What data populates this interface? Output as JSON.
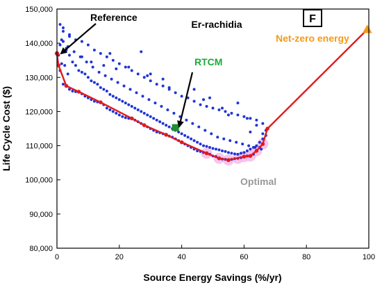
{
  "chart_data": {
    "type": "scatter",
    "title": "Er-rachidia",
    "panel_label": "F",
    "xlabel": "Source Energy Savings (%/yr)",
    "ylabel": "Life Cycle Cost ($)",
    "xlim": [
      0,
      100
    ],
    "ylim": [
      80000,
      150000
    ],
    "x_ticks": [
      0,
      20,
      40,
      60,
      80,
      100
    ],
    "x_tick_labels": [
      "0",
      "20",
      "40",
      "60",
      "80",
      "100"
    ],
    "y_ticks": [
      80000,
      90000,
      100000,
      110000,
      120000,
      130000,
      140000,
      150000
    ],
    "y_tick_labels": [
      "80,000",
      "90,000",
      "100,000",
      "110,000",
      "120,000",
      "130,000",
      "140,000",
      "150,000"
    ],
    "grid": false,
    "colors": {
      "points": "#1f35d6",
      "pareto": "#e31a1c",
      "optimal_highlight": "#f4b8e8",
      "rtcm": "#1f8f2f",
      "rtcm_label": "#1aaa3a",
      "net_zero": "#f39a1a",
      "optimal_label": "#999999",
      "annotation_arrow": "#000000"
    },
    "annotations": {
      "reference": "Reference",
      "rtcm": "RTCM",
      "net_zero": "Net-zero energy",
      "optimal": "Optimal"
    },
    "special_points": {
      "reference": {
        "x": 0,
        "y": 137000
      },
      "rtcm": {
        "x": 38,
        "y": 115300
      },
      "net_zero": {
        "x": 99.5,
        "y": 144000
      },
      "optimal": {
        "x": 55,
        "y": 105800
      }
    },
    "pareto_front": {
      "x": [
        0,
        0.5,
        3,
        7,
        14,
        24,
        28,
        35,
        40,
        48,
        52,
        55,
        60,
        62,
        64,
        66,
        67.5,
        99.5
      ],
      "y": [
        137000,
        133500,
        127500,
        125800,
        122700,
        118000,
        116000,
        113200,
        111000,
        107800,
        106300,
        105800,
        106800,
        107000,
        108500,
        110500,
        115000,
        144000
      ]
    },
    "optimal_region": {
      "x": [
        48,
        52,
        55,
        58,
        60,
        62,
        64,
        66
      ],
      "y": [
        107800,
        106300,
        105800,
        106300,
        106800,
        107000,
        108500,
        110500
      ]
    },
    "series": [
      {
        "name": "",
        "x": [
          0.5,
          1,
          1,
          1.5,
          2,
          2,
          2.5,
          3,
          3,
          3.5,
          4,
          4,
          5,
          5,
          6,
          6,
          7,
          7,
          8,
          8,
          9,
          9,
          10,
          10,
          11,
          11,
          12,
          12,
          13,
          13,
          14,
          14,
          15,
          15,
          16,
          16,
          17,
          17,
          18,
          18,
          19,
          19,
          20,
          20,
          21,
          21,
          22,
          22,
          23,
          23,
          24,
          24,
          25,
          25,
          26,
          26,
          27,
          27,
          28,
          28,
          29,
          29,
          30,
          30,
          31,
          31,
          32,
          32,
          33,
          33,
          34,
          34,
          35,
          35,
          36,
          36,
          37,
          37,
          38,
          38,
          39,
          39,
          40,
          40,
          41,
          41,
          42,
          42,
          43,
          43,
          44,
          44,
          45,
          45,
          46,
          46,
          47,
          47,
          48,
          48,
          49,
          49,
          50,
          50,
          51,
          51,
          52,
          52,
          53,
          53,
          54,
          54,
          55,
          55,
          56,
          56,
          57,
          57,
          58,
          58,
          59,
          59,
          60,
          60,
          61,
          61,
          62,
          62,
          63,
          63,
          64,
          64,
          65,
          65,
          66,
          66,
          67,
          67,
          2,
          4,
          6,
          8,
          10,
          12,
          14,
          16,
          18,
          20,
          22,
          24,
          26,
          28,
          30,
          32,
          34,
          36,
          38,
          40,
          42,
          44,
          46,
          48,
          50,
          52,
          54,
          56,
          58,
          60,
          62,
          64,
          66,
          1.5,
          3.5,
          5.5,
          7.5,
          9.5,
          11.5,
          13.5,
          15.5,
          17.5,
          19.5,
          21.5,
          23.5,
          25.5,
          27.5,
          29.5,
          31.5,
          33.5,
          35.5,
          37.5,
          39.5,
          41.5,
          43.5,
          45.5,
          47.5,
          49.5,
          51.5,
          53.5,
          55.5,
          57.5,
          59.5,
          61.5,
          63.5,
          65.5,
          1,
          2,
          3,
          4,
          8,
          11,
          15,
          19,
          27,
          30,
          34,
          44,
          49,
          53,
          58,
          61,
          64,
          66,
          17,
          23,
          29,
          36,
          47,
          55,
          62
        ],
        "y": [
          136500,
          132000,
          139500,
          134000,
          128000,
          140500,
          133500,
          127500,
          138000,
          131000,
          126500,
          136500,
          126000,
          134500,
          125800,
          133500,
          125800,
          132000,
          125200,
          131500,
          124500,
          131000,
          124000,
          130000,
          123500,
          129000,
          123000,
          128500,
          122800,
          128000,
          122700,
          127000,
          122000,
          126500,
          121000,
          126000,
          120500,
          125000,
          120000,
          124500,
          119500,
          124000,
          119000,
          123500,
          118500,
          123000,
          118200,
          122500,
          118000,
          122000,
          118000,
          121500,
          117500,
          121000,
          117000,
          120500,
          116500,
          120000,
          116000,
          119500,
          115500,
          119000,
          115000,
          118500,
          114500,
          118000,
          114000,
          117500,
          113800,
          117000,
          113500,
          116500,
          113200,
          116000,
          112800,
          115500,
          112500,
          115000,
          112000,
          114500,
          111500,
          114000,
          111000,
          113500,
          110500,
          113000,
          110000,
          112500,
          109500,
          112000,
          109000,
          111500,
          108500,
          111000,
          108300,
          110500,
          108000,
          110000,
          107800,
          109800,
          107500,
          109500,
          107000,
          109200,
          106800,
          109000,
          106300,
          108800,
          106100,
          108500,
          106000,
          108300,
          105800,
          108000,
          106000,
          107800,
          106200,
          107600,
          106300,
          107500,
          106500,
          107800,
          106800,
          108000,
          107000,
          108500,
          107000,
          109000,
          107500,
          109500,
          108500,
          110000,
          109500,
          111000,
          110500,
          112000,
          113000,
          114500,
          143500,
          142000,
          141000,
          140500,
          139500,
          138000,
          137000,
          136000,
          135000,
          134000,
          133000,
          132000,
          131000,
          130000,
          129000,
          128000,
          127500,
          126500,
          125500,
          124500,
          124000,
          123000,
          122000,
          121500,
          121000,
          120500,
          120000,
          119500,
          119000,
          118500,
          118000,
          117500,
          116500,
          141000,
          139000,
          137500,
          136000,
          134500,
          133000,
          131500,
          130500,
          129500,
          128500,
          127500,
          126500,
          125500,
          124500,
          123500,
          122500,
          121500,
          120500,
          119500,
          118500,
          117500,
          116500,
          115500,
          114500,
          113500,
          112500,
          112000,
          111500,
          111000,
          110500,
          110000,
          109500,
          109000,
          145500,
          144500,
          138500,
          142500,
          136000,
          134500,
          133500,
          132500,
          137500,
          131000,
          129500,
          126500,
          124000,
          121000,
          122500,
          118000,
          116000,
          113500,
          137000,
          133000,
          130500,
          127000,
          123500,
          119000,
          114000
        ]
      }
    ]
  }
}
